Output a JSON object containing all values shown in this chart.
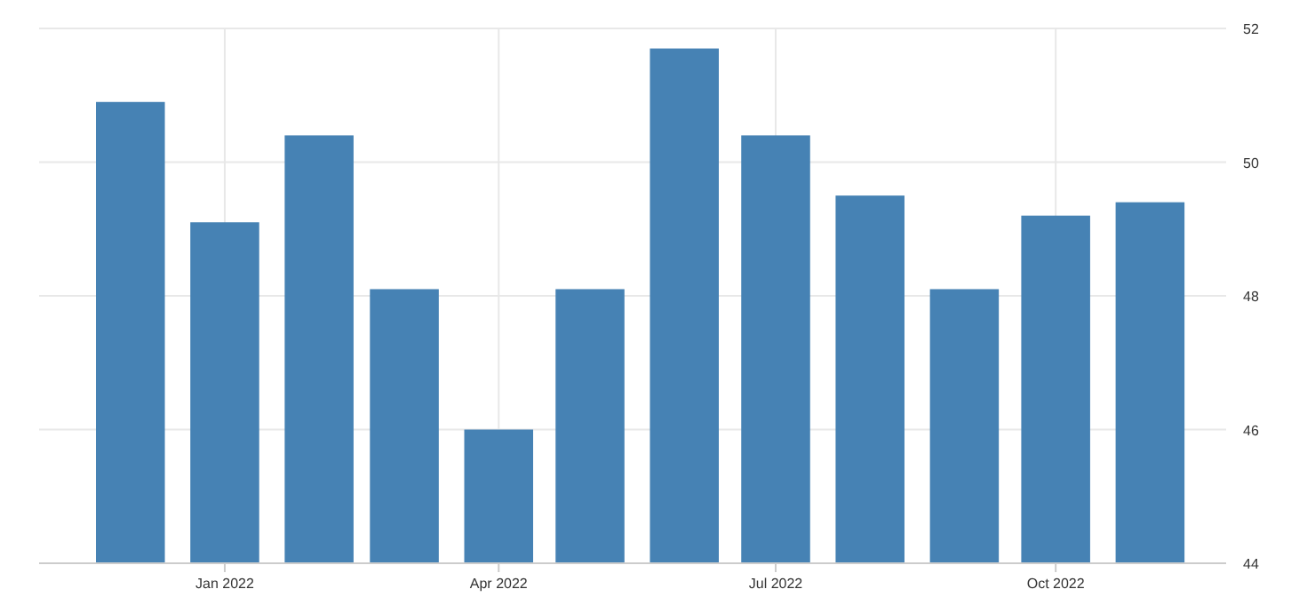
{
  "chart_data": {
    "type": "bar",
    "x": [
      "2021-12-01",
      "2022-01-01",
      "2022-02-01",
      "2022-03-01",
      "2022-04-01",
      "2022-05-01",
      "2022-06-01",
      "2022-07-01",
      "2022-08-01",
      "2022-09-01",
      "2022-10-01",
      "2022-11-01"
    ],
    "values": [
      50.9,
      49.1,
      50.4,
      48.1,
      46.0,
      48.1,
      51.7,
      50.4,
      49.5,
      48.1,
      49.2,
      49.4
    ],
    "color": "#4682b4",
    "xlim": [
      "2021-11-01",
      "2022-11-26"
    ],
    "xticks": [
      {
        "value": "2022-01-01",
        "label": "Jan 2022"
      },
      {
        "value": "2022-04-01",
        "label": "Apr 2022"
      },
      {
        "value": "2022-07-01",
        "label": "Jul 2022"
      },
      {
        "value": "2022-10-01",
        "label": "Oct 2022"
      }
    ],
    "ylim": [
      44,
      52
    ],
    "yticks": [
      44,
      46,
      48,
      50,
      52
    ],
    "grid": true
  }
}
